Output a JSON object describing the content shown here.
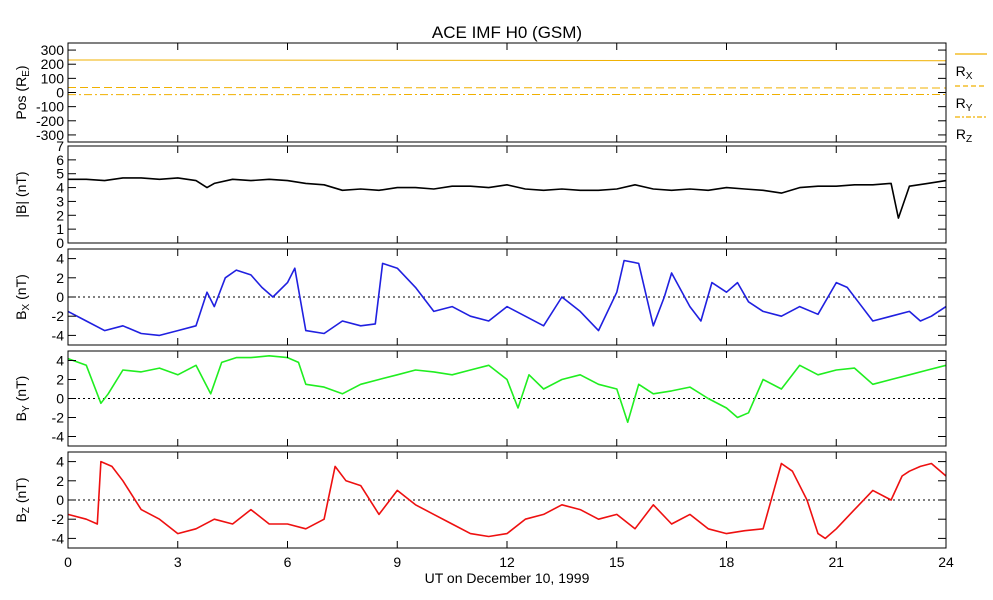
{
  "figure": {
    "title": "ACE IMF H0 (GSM)",
    "xlabel": "UT on December 10, 1999"
  },
  "colors": {
    "pos": "#f0b000",
    "bt": "#000000",
    "bx": "#2020e0",
    "by": "#20ee20",
    "bz": "#ee1010"
  },
  "chart_data": [
    {
      "type": "line",
      "panel": "position",
      "xlim": [
        0,
        24
      ],
      "ylim": [
        -350,
        350
      ],
      "yticks": [
        -300,
        -200,
        -100,
        0,
        100,
        200,
        300
      ],
      "ylabel_main": "Pos (R",
      "ylabel_sub": "E",
      "ylabel_tail": ")",
      "series": [
        {
          "name_main": "R",
          "name_sub": "X",
          "style": "solid",
          "x": [
            0,
            24
          ],
          "y": [
            230,
            225
          ]
        },
        {
          "name_main": "R",
          "name_sub": "Y",
          "style": "dashed",
          "x": [
            0,
            24
          ],
          "y": [
            35,
            32
          ]
        },
        {
          "name_main": "R",
          "name_sub": "Z",
          "style": "dashdot",
          "x": [
            0,
            24
          ],
          "y": [
            -15,
            -14
          ]
        }
      ]
    },
    {
      "type": "line",
      "panel": "bt",
      "xlim": [
        0,
        24
      ],
      "ylim": [
        0,
        7
      ],
      "yticks": [
        0,
        1,
        2,
        3,
        4,
        5,
        6,
        7
      ],
      "ylabel_main": "|B| (nT)",
      "series": [
        {
          "x": [
            0,
            0.5,
            1,
            1.5,
            2,
            2.5,
            3,
            3.5,
            3.8,
            4,
            4.5,
            5,
            5.5,
            6,
            6.5,
            7,
            7.5,
            8,
            8.5,
            9,
            9.5,
            10,
            10.5,
            11,
            11.5,
            12,
            12.5,
            13,
            13.5,
            14,
            14.5,
            15,
            15.5,
            16,
            16.5,
            17,
            17.5,
            18,
            18.5,
            19,
            19.5,
            20,
            20.5,
            21,
            21.5,
            22,
            22.5,
            22.7,
            23,
            23.5,
            24
          ],
          "y": [
            4.6,
            4.6,
            4.5,
            4.7,
            4.7,
            4.6,
            4.7,
            4.5,
            4.0,
            4.3,
            4.6,
            4.5,
            4.6,
            4.5,
            4.3,
            4.2,
            3.8,
            3.9,
            3.8,
            4.0,
            4.0,
            3.9,
            4.1,
            4.1,
            4.0,
            4.2,
            3.9,
            3.8,
            3.9,
            3.8,
            3.8,
            3.9,
            4.2,
            3.9,
            3.8,
            3.9,
            3.8,
            4.0,
            3.9,
            3.8,
            3.6,
            4.0,
            4.1,
            4.1,
            4.2,
            4.2,
            4.3,
            1.8,
            4.1,
            4.3,
            4.5
          ]
        }
      ]
    },
    {
      "type": "line",
      "panel": "bx",
      "xlim": [
        0,
        24
      ],
      "ylim": [
        -5,
        5
      ],
      "yticks": [
        -4,
        -2,
        0,
        2,
        4
      ],
      "zero_line": true,
      "ylabel_main": "B",
      "ylabel_sub": "X",
      "ylabel_tail": " (nT)",
      "series": [
        {
          "x": [
            0,
            0.5,
            1,
            1.5,
            2,
            2.5,
            3,
            3.5,
            3.8,
            4,
            4.3,
            4.6,
            5,
            5.3,
            5.6,
            6,
            6.2,
            6.5,
            7,
            7.5,
            8,
            8.4,
            8.6,
            9,
            9.5,
            10,
            10.5,
            11,
            11.5,
            12,
            12.5,
            13,
            13.5,
            14,
            14.5,
            15,
            15.2,
            15.6,
            16,
            16.3,
            16.5,
            17,
            17.3,
            17.6,
            18,
            18.3,
            18.6,
            19,
            19.5,
            20,
            20.5,
            21,
            21.3,
            21.6,
            22,
            22.5,
            23,
            23.3,
            23.6,
            24
          ],
          "y": [
            -1.5,
            -2.5,
            -3.5,
            -3.0,
            -3.8,
            -4.0,
            -3.5,
            -3.0,
            0.5,
            -1.0,
            2.0,
            2.8,
            2.3,
            1.0,
            0.0,
            1.5,
            3.0,
            -3.5,
            -3.8,
            -2.5,
            -3.0,
            -2.8,
            3.5,
            3.0,
            1.0,
            -1.5,
            -1.0,
            -2.0,
            -2.5,
            -1.0,
            -2.0,
            -3.0,
            0.0,
            -1.5,
            -3.5,
            0.5,
            3.8,
            3.5,
            -3.0,
            0.0,
            2.5,
            -1.0,
            -2.5,
            1.5,
            0.5,
            1.5,
            -0.5,
            -1.5,
            -2.0,
            -1.0,
            -1.8,
            1.5,
            1.0,
            -0.5,
            -2.5,
            -2.0,
            -1.5,
            -2.5,
            -2.0,
            -1.0
          ]
        }
      ]
    },
    {
      "type": "line",
      "panel": "by",
      "xlim": [
        0,
        24
      ],
      "ylim": [
        -5,
        5
      ],
      "yticks": [
        -4,
        -2,
        0,
        2,
        4
      ],
      "zero_line": true,
      "ylabel_main": "B",
      "ylabel_sub": "Y",
      "ylabel_tail": " (nT)",
      "series": [
        {
          "x": [
            0,
            0.5,
            0.9,
            1.1,
            1.5,
            2,
            2.5,
            3,
            3.5,
            3.9,
            4.2,
            4.6,
            5,
            5.5,
            6,
            6.3,
            6.5,
            7,
            7.5,
            8,
            8.5,
            9,
            9.5,
            10,
            10.5,
            11,
            11.5,
            12,
            12.3,
            12.6,
            13,
            13.5,
            14,
            14.5,
            15,
            15.3,
            15.6,
            16,
            16.5,
            17,
            17.5,
            18,
            18.3,
            18.6,
            19,
            19.5,
            20,
            20.5,
            21,
            21.5,
            22,
            22.5,
            23,
            23.5,
            24
          ],
          "y": [
            4.2,
            3.5,
            -0.5,
            0.5,
            3.0,
            2.8,
            3.2,
            2.5,
            3.5,
            0.5,
            3.8,
            4.3,
            4.3,
            4.5,
            4.3,
            3.8,
            1.5,
            1.2,
            0.5,
            1.5,
            2.0,
            2.5,
            3.0,
            2.8,
            2.5,
            3.0,
            3.5,
            2.0,
            -1.0,
            2.5,
            1.0,
            2.0,
            2.5,
            1.5,
            1.0,
            -2.5,
            1.5,
            0.5,
            0.8,
            1.2,
            0.0,
            -1.0,
            -2.0,
            -1.5,
            2.0,
            1.0,
            3.5,
            2.5,
            3.0,
            3.2,
            1.5,
            2.0,
            2.5,
            3.0,
            3.5
          ]
        }
      ]
    },
    {
      "type": "line",
      "panel": "bz",
      "xlim": [
        0,
        24
      ],
      "ylim": [
        -5,
        5
      ],
      "yticks": [
        -4,
        -2,
        0,
        2,
        4
      ],
      "zero_line": true,
      "ylabel_main": "B",
      "ylabel_sub": "Z",
      "ylabel_tail": " (nT)",
      "series": [
        {
          "x": [
            0,
            0.5,
            0.8,
            0.9,
            1.2,
            1.5,
            2,
            2.5,
            3,
            3.5,
            4,
            4.5,
            5,
            5.5,
            6,
            6.5,
            7,
            7.3,
            7.6,
            8,
            8.5,
            9,
            9.5,
            10,
            10.5,
            11,
            11.5,
            12,
            12.5,
            13,
            13.5,
            14,
            14.5,
            15,
            15.5,
            16,
            16.5,
            17,
            17.5,
            18,
            18.5,
            19,
            19.5,
            19.8,
            20.2,
            20.5,
            20.7,
            21,
            21.5,
            22,
            22.5,
            22.8,
            23,
            23.3,
            23.6,
            24
          ],
          "y": [
            -1.5,
            -2.0,
            -2.5,
            4.0,
            3.5,
            2.0,
            -1.0,
            -2.0,
            -3.5,
            -3.0,
            -2.0,
            -2.5,
            -1.0,
            -2.5,
            -2.5,
            -3.0,
            -2.0,
            3.5,
            2.0,
            1.5,
            -1.5,
            1.0,
            -0.5,
            -1.5,
            -2.5,
            -3.5,
            -3.8,
            -3.5,
            -2.0,
            -1.5,
            -0.5,
            -1.0,
            -2.0,
            -1.5,
            -3.0,
            -0.5,
            -2.5,
            -1.5,
            -3.0,
            -3.5,
            -3.2,
            -3.0,
            3.8,
            3.0,
            0.0,
            -3.5,
            -4.0,
            -3.0,
            -1.0,
            1.0,
            0.0,
            2.5,
            3.0,
            3.5,
            3.8,
            2.5
          ]
        }
      ]
    }
  ],
  "xaxis": {
    "xlim": [
      0,
      24
    ],
    "ticks": [
      0,
      3,
      6,
      9,
      12,
      15,
      18,
      21,
      24
    ],
    "tick_labels": [
      "0",
      "3",
      "6",
      "9",
      "12",
      "15",
      "18",
      "21",
      "24"
    ]
  }
}
